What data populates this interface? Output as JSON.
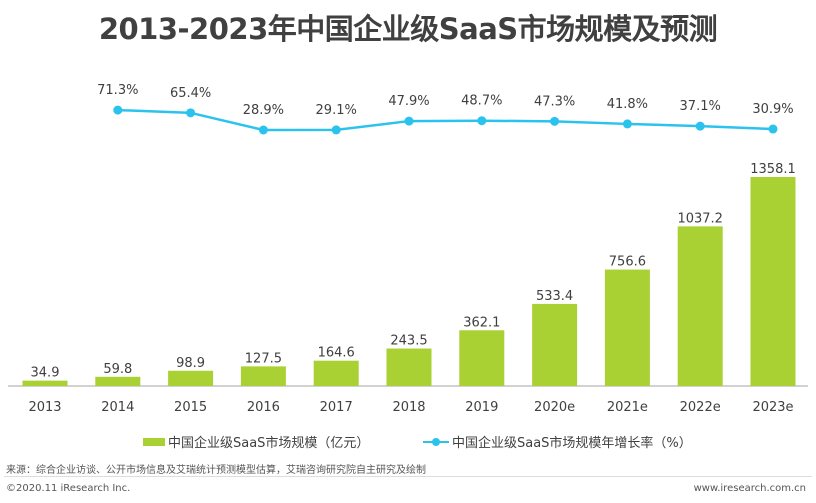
{
  "title": "2013-2023年中国企业级SaaS市场规模及预测",
  "chart_data": {
    "type": "bar+line",
    "title": "2013-2023年中国企业级SaaS市场规模及预测",
    "categories": [
      "2013",
      "2014",
      "2015",
      "2016",
      "2017",
      "2018",
      "2019",
      "2020e",
      "2021e",
      "2022e",
      "2023e"
    ],
    "series": [
      {
        "name": "中国企业级SaaS市场规模（亿元）",
        "type": "bar",
        "color": "#a9d134",
        "values": [
          34.9,
          59.8,
          98.9,
          127.5,
          164.6,
          243.5,
          362.1,
          533.4,
          756.6,
          1037.2,
          1358.1
        ],
        "labels": [
          "34.9",
          "59.8",
          "98.9",
          "127.5",
          "164.6",
          "243.5",
          "362.1",
          "533.4",
          "756.6",
          "1037.2",
          "1358.1"
        ]
      },
      {
        "name": "中国企业级SaaS市场规模年增长率（%）",
        "type": "line",
        "color": "#2bc3ee",
        "values": [
          null,
          71.3,
          65.4,
          28.9,
          29.1,
          47.9,
          48.7,
          47.3,
          41.8,
          37.1,
          30.9
        ],
        "labels": [
          "",
          "71.3%",
          "65.4%",
          "28.9%",
          "29.1%",
          "47.9%",
          "48.7%",
          "47.3%",
          "41.8%",
          "37.1%",
          "30.9%"
        ]
      }
    ],
    "legend": "bottom",
    "grid": false
  },
  "footer": {
    "source": "来源：综合企业访谈、公开市场信息及艾瑞统计预测模型估算，艾瑞咨询研究院自主研究及绘制",
    "copyright": "©2020.11 iResearch Inc.",
    "website": "www.iresearch.com.cn"
  }
}
